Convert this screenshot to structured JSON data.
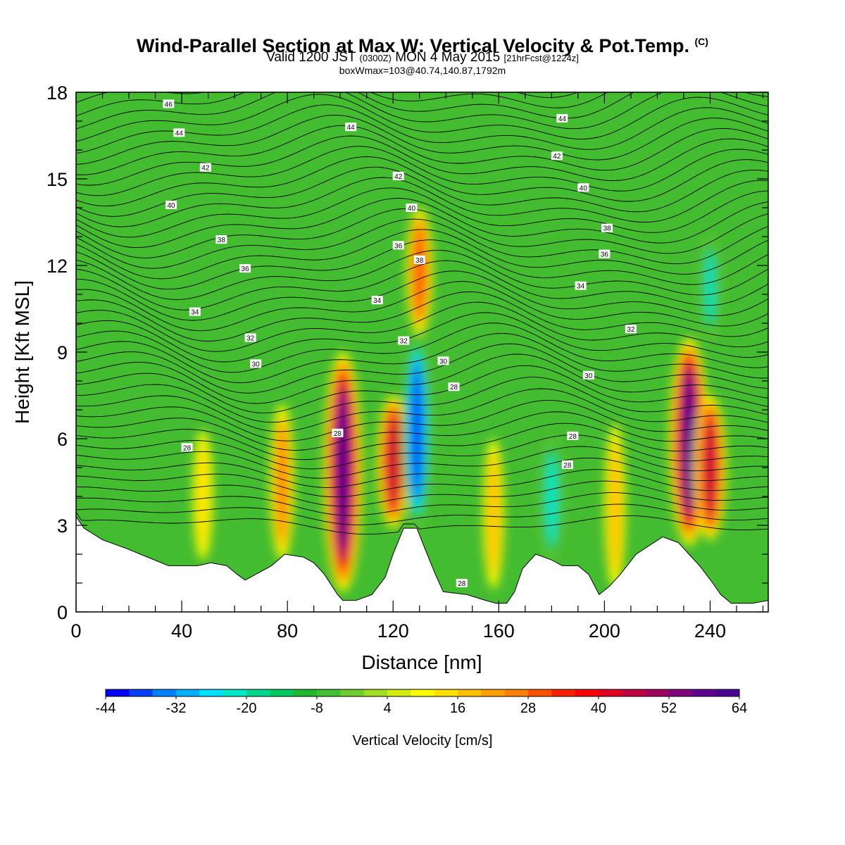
{
  "header": {
    "title": "Wind-Parallel Section at Max W: Vertical Velocity & Pot.Temp.",
    "copyright": "(C)",
    "valid_prefix": "Valid 1200 JST",
    "valid_utc": "(0300Z)",
    "valid_date": "MON 4 May 2015",
    "forecast": "[21hrFcst@1224z]",
    "box_info": "boxWmax=103@40.74,140.87,1792m"
  },
  "chart_data": {
    "type": "heatmap",
    "xlabel": "Distance [nm]",
    "ylabel": "Height [Kft MSL]",
    "xlim": [
      0,
      262
    ],
    "ylim": [
      0,
      18
    ],
    "x_ticks": [
      0,
      40,
      80,
      120,
      160,
      200,
      240
    ],
    "y_ticks": [
      0,
      3,
      6,
      9,
      12,
      15,
      18
    ],
    "colorbar": {
      "label": "Vertical Velocity [cm/s]",
      "min": -44,
      "max": 64,
      "step": 4,
      "tick_labels": [
        "-44",
        "-32",
        "-20",
        "-8",
        "4",
        "16",
        "28",
        "40",
        "52",
        "64"
      ],
      "colors": [
        "#0000ff",
        "#0040ff",
        "#0080ff",
        "#00b0ff",
        "#00e0ff",
        "#00e8c8",
        "#00d890",
        "#00c860",
        "#20b830",
        "#40c030",
        "#70cc30",
        "#a0dc20",
        "#d0ec10",
        "#ffff00",
        "#ffe000",
        "#ffc000",
        "#ffa000",
        "#ff8000",
        "#ff5000",
        "#ff2000",
        "#ff0000",
        "#e00020",
        "#c00040",
        "#a00060",
        "#800080",
        "#600090",
        "#4a0090"
      ]
    },
    "w_features": [
      {
        "x": 48,
        "z_bottom": 1.8,
        "z_top": 6.3,
        "w": 14
      },
      {
        "x": 78,
        "z_bottom": 1.8,
        "z_top": 7.2,
        "w": 24
      },
      {
        "x": 101,
        "z_bottom": 0.7,
        "z_top": 9.0,
        "w": 62
      },
      {
        "x": 120,
        "z_bottom": 2.9,
        "z_top": 7.5,
        "w": 45
      },
      {
        "x": 129,
        "z_bottom": 2.9,
        "z_top": 9.6,
        "w": -42
      },
      {
        "x": 130,
        "z_bottom": 9.6,
        "z_top": 14.0,
        "w": 30
      },
      {
        "x": 158,
        "z_bottom": 0.8,
        "z_top": 6.0,
        "w": 16
      },
      {
        "x": 180,
        "z_bottom": 1.8,
        "z_top": 6.0,
        "w": -24
      },
      {
        "x": 204,
        "z_bottom": 0.8,
        "z_top": 6.5,
        "w": 16
      },
      {
        "x": 232,
        "z_bottom": 2.3,
        "z_top": 9.5,
        "w": 64
      },
      {
        "x": 240,
        "z_bottom": 2.5,
        "z_top": 7.5,
        "w": 46
      },
      {
        "x": 240,
        "z_bottom": 9.5,
        "z_top": 13.0,
        "w": -22
      }
    ],
    "terrain": [
      [
        0,
        3.3
      ],
      [
        3,
        2.9
      ],
      [
        10,
        2.5
      ],
      [
        19,
        2.2
      ],
      [
        27,
        1.9
      ],
      [
        35,
        1.6
      ],
      [
        46,
        1.6
      ],
      [
        51,
        1.7
      ],
      [
        57,
        1.6
      ],
      [
        61,
        1.3
      ],
      [
        64,
        1.1
      ],
      [
        68,
        1.3
      ],
      [
        74,
        1.6
      ],
      [
        79,
        2.0
      ],
      [
        86,
        1.9
      ],
      [
        90,
        1.7
      ],
      [
        94,
        1.3
      ],
      [
        99,
        0.6
      ],
      [
        101,
        0.4
      ],
      [
        106,
        0.4
      ],
      [
        112,
        0.6
      ],
      [
        117,
        1.2
      ],
      [
        120,
        2.0
      ],
      [
        124,
        2.9
      ],
      [
        129,
        2.9
      ],
      [
        132,
        2.2
      ],
      [
        136,
        1.3
      ],
      [
        139,
        0.7
      ],
      [
        148,
        0.6
      ],
      [
        155,
        0.4
      ],
      [
        159,
        0.3
      ],
      [
        163,
        0.3
      ],
      [
        166,
        0.7
      ],
      [
        169,
        1.5
      ],
      [
        174,
        2.0
      ],
      [
        180,
        1.8
      ],
      [
        184,
        1.6
      ],
      [
        190,
        1.6
      ],
      [
        194,
        1.3
      ],
      [
        198,
        0.6
      ],
      [
        202,
        0.9
      ],
      [
        206,
        1.3
      ],
      [
        212,
        2.0
      ],
      [
        217,
        2.3
      ],
      [
        222,
        2.6
      ],
      [
        228,
        2.4
      ],
      [
        232,
        2.0
      ],
      [
        236,
        1.6
      ],
      [
        241,
        1.0
      ],
      [
        244,
        0.6
      ],
      [
        248,
        0.3
      ],
      [
        256,
        0.3
      ],
      [
        262,
        0.4
      ]
    ],
    "theta_contours": [
      {
        "label": "46",
        "label_x": 35,
        "label_z": 17.6
      },
      {
        "label": "44",
        "label_x": 39,
        "label_z": 16.6
      },
      {
        "label": "42",
        "label_x": 49,
        "label_z": 15.4
      },
      {
        "label": "40",
        "label_x": 36,
        "label_z": 14.1
      },
      {
        "label": "38",
        "label_x": 55,
        "label_z": 12.9
      },
      {
        "label": "36",
        "label_x": 64,
        "label_z": 11.9
      },
      {
        "label": "34",
        "label_x": 45,
        "label_z": 10.4
      },
      {
        "label": "32",
        "label_x": 66,
        "label_z": 9.5
      },
      {
        "label": "30",
        "label_x": 68,
        "label_z": 8.6
      },
      {
        "label": "28",
        "label_x": 42,
        "label_z": 5.7
      },
      {
        "label": "28",
        "label_x": 99,
        "label_z": 6.2
      },
      {
        "label": "44",
        "label_x": 104,
        "label_z": 16.8
      },
      {
        "label": "42",
        "label_x": 122,
        "label_z": 15.1
      },
      {
        "label": "40",
        "label_x": 127,
        "label_z": 14.0
      },
      {
        "label": "36",
        "label_x": 122,
        "label_z": 12.7
      },
      {
        "label": "38",
        "label_x": 130,
        "label_z": 12.2
      },
      {
        "label": "34",
        "label_x": 114,
        "label_z": 10.8
      },
      {
        "label": "32",
        "label_x": 124,
        "label_z": 9.4
      },
      {
        "label": "30",
        "label_x": 139,
        "label_z": 8.7
      },
      {
        "label": "28",
        "label_x": 143,
        "label_z": 7.8
      },
      {
        "label": "28",
        "label_x": 146,
        "label_z": 1.0
      },
      {
        "label": "44",
        "label_x": 184,
        "label_z": 17.1
      },
      {
        "label": "42",
        "label_x": 182,
        "label_z": 15.8
      },
      {
        "label": "40",
        "label_x": 192,
        "label_z": 14.7
      },
      {
        "label": "38",
        "label_x": 201,
        "label_z": 13.3
      },
      {
        "label": "36",
        "label_x": 200,
        "label_z": 12.4
      },
      {
        "label": "34",
        "label_x": 191,
        "label_z": 11.3
      },
      {
        "label": "32",
        "label_x": 210,
        "label_z": 9.8
      },
      {
        "label": "30",
        "label_x": 194,
        "label_z": 8.2
      },
      {
        "label": "28",
        "label_x": 188,
        "label_z": 6.1
      },
      {
        "label": "28",
        "label_x": 186,
        "label_z": 5.1
      }
    ]
  }
}
